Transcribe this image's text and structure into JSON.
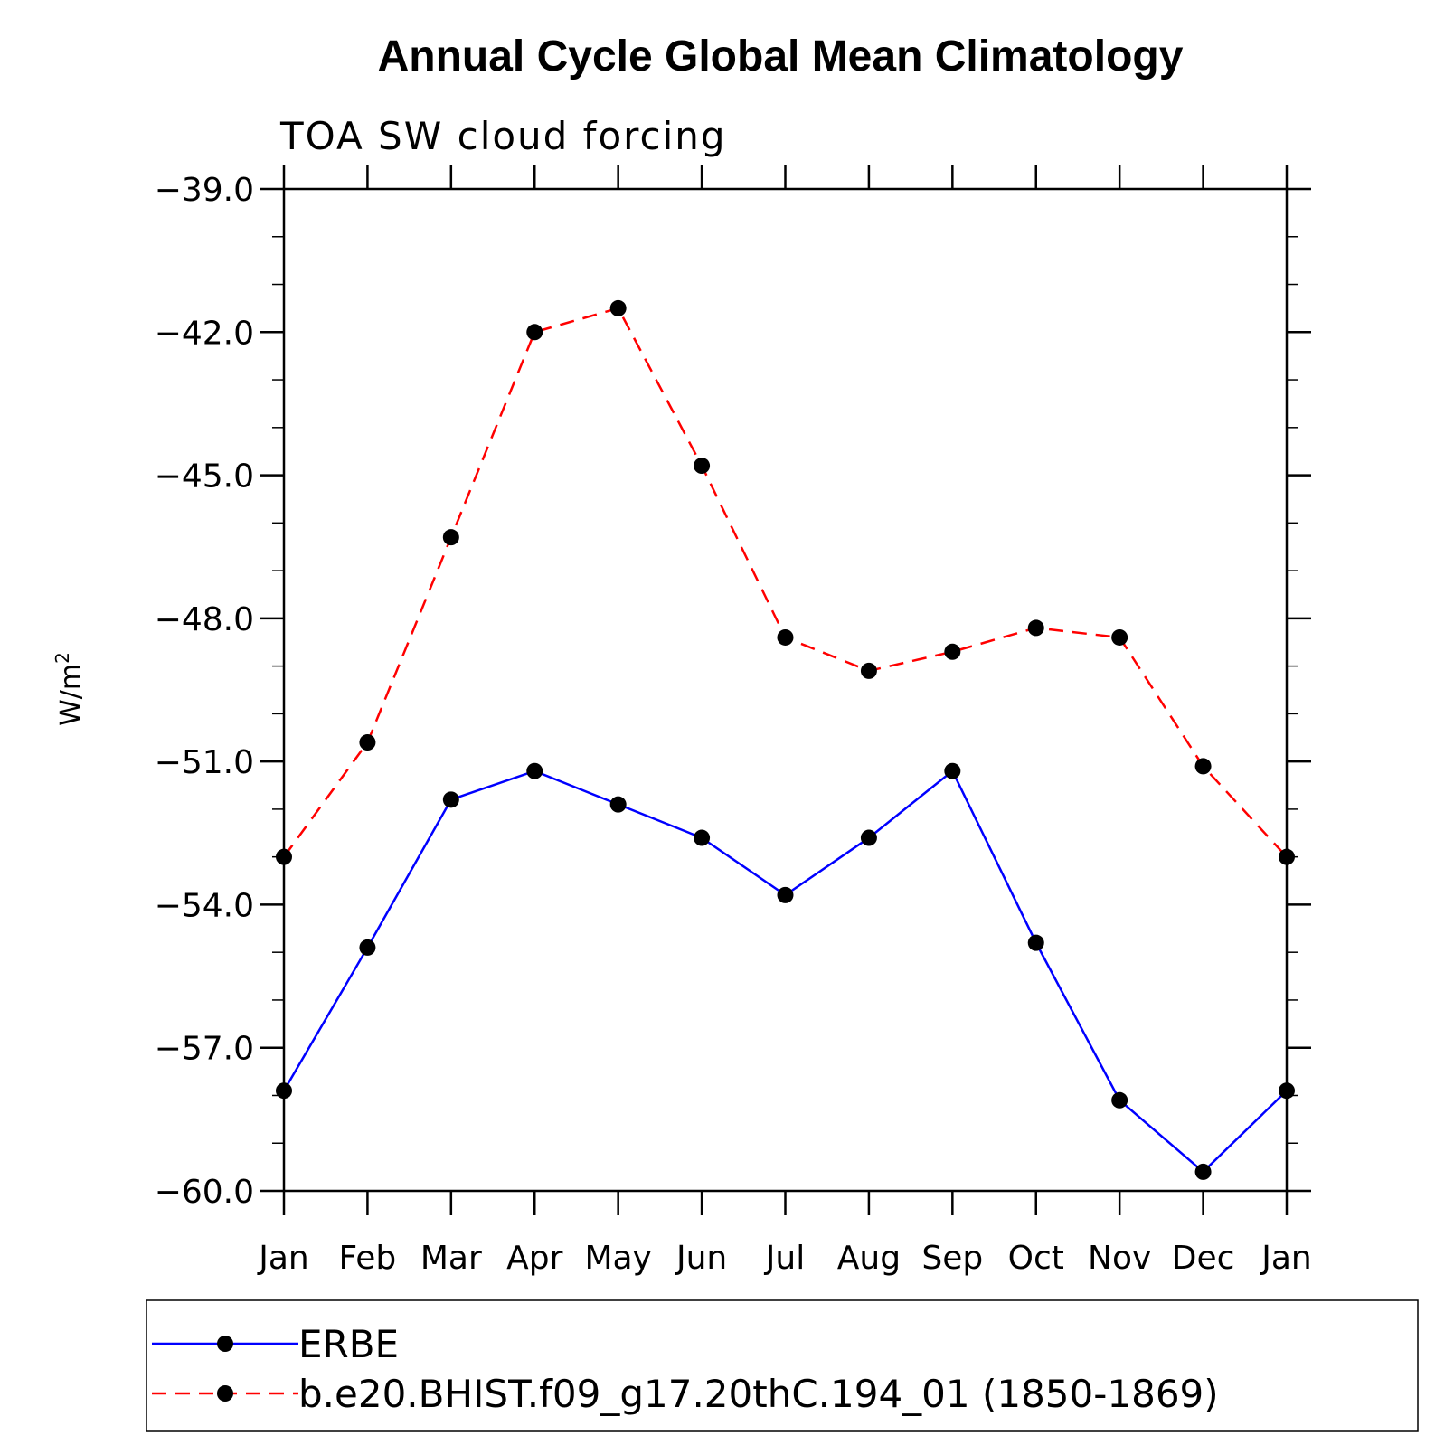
{
  "chart_data": {
    "type": "line",
    "title": "Annual Cycle Global Mean Climatology",
    "subtitle": "TOA SW cloud forcing",
    "ylabel": "W/m",
    "ylabel_sup": "2",
    "ylim": [
      -60.0,
      -39.0
    ],
    "yticks": [
      "-39.0",
      "-42.0",
      "-45.0",
      "-48.0",
      "-51.0",
      "-54.0",
      "-57.0",
      "-60.0"
    ],
    "ytick_values": [
      -39,
      -42,
      -45,
      -48,
      -51,
      -54,
      -57,
      -60
    ],
    "categories": [
      "Jan",
      "Feb",
      "Mar",
      "Apr",
      "May",
      "Jun",
      "Jul",
      "Aug",
      "Sep",
      "Oct",
      "Nov",
      "Dec",
      "Jan"
    ],
    "series": [
      {
        "name": "ERBE",
        "color": "#0000ff",
        "dash": "solid",
        "values": [
          -57.9,
          -54.9,
          -51.8,
          -51.2,
          -51.9,
          -52.6,
          -53.8,
          -52.6,
          -51.2,
          -54.8,
          -58.1,
          -59.6,
          -57.9
        ]
      },
      {
        "name": "b.e20.BHIST.f09_g17.20thC.194_01 (1850-1869)",
        "color": "#ff0000",
        "dash": "dashed",
        "values": [
          -53.0,
          -50.6,
          -46.3,
          -42.0,
          -41.5,
          -44.8,
          -48.4,
          -49.1,
          -48.7,
          -48.2,
          -48.4,
          -51.1,
          -53.0
        ]
      }
    ],
    "grid": false,
    "legend_position": "bottom"
  }
}
